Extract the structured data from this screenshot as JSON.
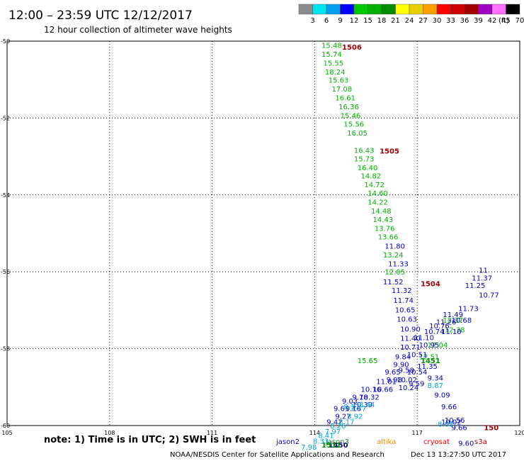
{
  "header": {
    "title": "12:00 – 23:59 UTC 12/12/2017",
    "subtitle": "12 hour collection of altimeter wave heights"
  },
  "colorbar": {
    "unit": "(ft)",
    "labels": [
      "3",
      "6",
      "9",
      "12",
      "15",
      "18",
      "21",
      "24",
      "27",
      "30",
      "33",
      "36",
      "39",
      "42",
      "45",
      "70"
    ],
    "colors": [
      "#8c8c8c",
      "#00e5ef",
      "#00a0f0",
      "#0000ff",
      "#00c800",
      "#00b000",
      "#008c00",
      "#ffff00",
      "#e8d000",
      "#ffa000",
      "#ff0000",
      "#d00000",
      "#a00000",
      "#a000c0",
      "#ff70ff",
      "#000000"
    ]
  },
  "footer": {
    "note": "note: 1) Time is in UTC; 2) SWH is in feet",
    "credit": "NOAA/NESDIS Center for Satellite Applications and Research",
    "timestamp": "Dec 13 13:27:50 UTC 2017",
    "satellites": [
      {
        "name": "jason2",
        "color": "#0000c8"
      },
      {
        "name": "jason3",
        "color": "#008c00"
      },
      {
        "name": "altika",
        "color": "#ff8c00"
      },
      {
        "name": "cryosat",
        "color": "#ff0000"
      },
      {
        "name": "s3a",
        "color": "#a00000"
      }
    ]
  },
  "chart_data": {
    "type": "scatter",
    "title": "12:00 – 23:59 UTC 12/12/2017",
    "subtitle": "12 hour collection of altimeter wave heights",
    "xlim": [
      105,
      120
    ],
    "ylim": [
      -60,
      -50
    ],
    "xticks": [
      105,
      108,
      111,
      114,
      117,
      120
    ],
    "yticks": [
      -50,
      -52,
      -54,
      -56,
      -58,
      -60
    ],
    "grid": true,
    "series": [
      {
        "name": "jason3",
        "color": "#00b000",
        "points": [
          {
            "x": 114.2,
            "y": -50.1,
            "v": "15.48"
          },
          {
            "x": 114.2,
            "y": -50.33,
            "v": "15.74"
          },
          {
            "x": 114.25,
            "y": -50.56,
            "v": "15.55"
          },
          {
            "x": 114.3,
            "y": -50.79,
            "v": "18.24"
          },
          {
            "x": 114.4,
            "y": -51.01,
            "v": "15.63"
          },
          {
            "x": 114.5,
            "y": -51.24,
            "v": "17.08"
          },
          {
            "x": 114.6,
            "y": -51.47,
            "v": "16.61"
          },
          {
            "x": 114.7,
            "y": -51.7,
            "v": "16.36"
          },
          {
            "x": 114.75,
            "y": -51.93,
            "v": "15.46"
          },
          {
            "x": 114.85,
            "y": -52.15,
            "v": "15.56"
          },
          {
            "x": 114.95,
            "y": -52.38,
            "v": "16.05"
          },
          {
            "x": 115.15,
            "y": -52.83,
            "v": "16.43"
          },
          {
            "x": 115.15,
            "y": -53.05,
            "v": "15.73"
          },
          {
            "x": 115.25,
            "y": -53.28,
            "v": "16.40"
          },
          {
            "x": 115.35,
            "y": -53.5,
            "v": "14.82"
          },
          {
            "x": 115.45,
            "y": -53.73,
            "v": "14.72"
          },
          {
            "x": 115.55,
            "y": -53.95,
            "v": "14.60"
          },
          {
            "x": 115.55,
            "y": -54.18,
            "v": "14.22"
          },
          {
            "x": 115.65,
            "y": -54.41,
            "v": "14.48"
          },
          {
            "x": 115.7,
            "y": -54.63,
            "v": "14.43"
          },
          {
            "x": 115.75,
            "y": -54.86,
            "v": "13.76"
          },
          {
            "x": 115.85,
            "y": -55.08,
            "v": "13.66"
          },
          {
            "x": 116.0,
            "y": -55.55,
            "v": "13.24"
          },
          {
            "x": 116.05,
            "y": -56.0,
            "v": "12.05"
          },
          {
            "x": 117.75,
            "y": -57.25,
            "v": "12.37"
          },
          {
            "x": 117.8,
            "y": -57.5,
            "v": "12.38"
          },
          {
            "x": 117.3,
            "y": -57.9,
            "v": "12.04"
          },
          {
            "x": 117.05,
            "y": -58.2,
            "v": "12.51"
          },
          {
            "x": 115.25,
            "y": -58.3,
            "v": "15.65"
          }
        ]
      },
      {
        "name": "jason2",
        "color": "#0000c8",
        "points": [
          {
            "x": 116.05,
            "y": -55.32,
            "v": "11.80"
          },
          {
            "x": 116.15,
            "y": -55.78,
            "v": "11.33"
          },
          {
            "x": 116.0,
            "y": -56.25,
            "v": "11.52"
          },
          {
            "x": 116.25,
            "y": -56.48,
            "v": "11.32"
          },
          {
            "x": 116.3,
            "y": -56.73,
            "v": "11.74"
          },
          {
            "x": 116.35,
            "y": -56.98,
            "v": "10.65"
          },
          {
            "x": 116.4,
            "y": -57.22,
            "v": "10.63"
          },
          {
            "x": 116.5,
            "y": -57.48,
            "v": "10.90"
          },
          {
            "x": 116.5,
            "y": -57.72,
            "v": "11.40"
          },
          {
            "x": 116.5,
            "y": -57.95,
            "v": "10.71"
          },
          {
            "x": 116.35,
            "y": -58.2,
            "v": "9.84"
          },
          {
            "x": 116.3,
            "y": -58.4,
            "v": "9.90"
          },
          {
            "x": 116.45,
            "y": -58.55,
            "v": "9.58"
          },
          {
            "x": 116.05,
            "y": -58.6,
            "v": "9.65"
          },
          {
            "x": 116.1,
            "y": -58.8,
            "v": "9.98"
          },
          {
            "x": 115.8,
            "y": -58.85,
            "v": "11.01"
          },
          {
            "x": 115.7,
            "y": -59.05,
            "v": "10.66"
          },
          {
            "x": 115.35,
            "y": -59.05,
            "v": "10.16"
          },
          {
            "x": 115.3,
            "y": -59.25,
            "v": "10.32"
          },
          {
            "x": 115.1,
            "y": -59.25,
            "v": "9.78"
          },
          {
            "x": 115.1,
            "y": -59.45,
            "v": "10.39"
          },
          {
            "x": 114.8,
            "y": -59.35,
            "v": "9.03"
          },
          {
            "x": 114.9,
            "y": -59.55,
            "v": "9.16"
          },
          {
            "x": 114.55,
            "y": -59.55,
            "v": "9.61"
          },
          {
            "x": 114.6,
            "y": -59.75,
            "v": "9.27"
          },
          {
            "x": 114.35,
            "y": -59.9,
            "v": "9.47"
          },
          {
            "x": 116.7,
            "y": -58.15,
            "v": "10.51"
          },
          {
            "x": 116.9,
            "y": -57.7,
            "v": "11.10"
          },
          {
            "x": 117.05,
            "y": -57.9,
            "v": "10.95"
          },
          {
            "x": 117.2,
            "y": -57.55,
            "v": "10.74"
          },
          {
            "x": 117.35,
            "y": -57.4,
            "v": "10.76"
          },
          {
            "x": 117.55,
            "y": -57.3,
            "v": "11.26"
          },
          {
            "x": 117.7,
            "y": -57.55,
            "v": "11.10"
          },
          {
            "x": 117.75,
            "y": -57.1,
            "v": "11.49"
          },
          {
            "x": 118.0,
            "y": -57.25,
            "v": "10.68"
          },
          {
            "x": 118.2,
            "y": -56.95,
            "v": "11.73"
          },
          {
            "x": 118.4,
            "y": -56.35,
            "v": "11.25"
          },
          {
            "x": 118.6,
            "y": -56.15,
            "v": "11.37"
          },
          {
            "x": 118.8,
            "y": -55.95,
            "v": "11"
          },
          {
            "x": 118.8,
            "y": -56.6,
            "v": "10.77"
          },
          {
            "x": 116.7,
            "y": -58.6,
            "v": "10.54"
          },
          {
            "x": 116.4,
            "y": -58.8,
            "v": "10.02"
          },
          {
            "x": 116.45,
            "y": -59.0,
            "v": "10.24"
          },
          {
            "x": 117.0,
            "y": -58.45,
            "v": "11.35"
          },
          {
            "x": 117.3,
            "y": -58.75,
            "v": "9.34"
          },
          {
            "x": 117.5,
            "y": -59.2,
            "v": "9.09"
          },
          {
            "x": 117.7,
            "y": -59.5,
            "v": "9.66"
          },
          {
            "x": 117.8,
            "y": -59.85,
            "v": "10.56"
          },
          {
            "x": 117.7,
            "y": -59.9,
            "v": "10.02"
          },
          {
            "x": 118.0,
            "y": -60.05,
            "v": "9.66"
          },
          {
            "x": 118.2,
            "y": -60.45,
            "v": "9.60"
          },
          {
            "x": 116.75,
            "y": -58.9,
            "v": "9.59"
          }
        ]
      },
      {
        "name": "altika",
        "color": "#00a8d0",
        "points": [
          {
            "x": 113.6,
            "y": -60.55,
            "v": "7.98"
          },
          {
            "x": 113.95,
            "y": -60.4,
            "v": "8.33"
          },
          {
            "x": 114.1,
            "y": -60.25,
            "v": "8.41"
          },
          {
            "x": 114.3,
            "y": -60.15,
            "v": "7.97"
          },
          {
            "x": 114.45,
            "y": -60.0,
            "v": "8.26"
          },
          {
            "x": 114.7,
            "y": -59.9,
            "v": "8.17"
          },
          {
            "x": 114.95,
            "y": -59.75,
            "v": "8.92"
          },
          {
            "x": 115.05,
            "y": -59.55,
            "v": "7.77"
          },
          {
            "x": 115.3,
            "y": -59.45,
            "v": "8.44"
          },
          {
            "x": 117.3,
            "y": -58.95,
            "v": "8.87"
          },
          {
            "x": 117.6,
            "y": -59.95,
            "v": "8.68"
          },
          {
            "x": 114.85,
            "y": -59.5,
            "v": "8.17"
          }
        ]
      }
    ],
    "pass_labels": [
      {
        "text": "1506",
        "x": 114.8,
        "y": -50.15,
        "color": "#a00000"
      },
      {
        "text": "1505",
        "x": 115.9,
        "y": -52.85,
        "color": "#a00000"
      },
      {
        "text": "1504",
        "x": 117.1,
        "y": -56.3,
        "color": "#a00000"
      },
      {
        "text": "150",
        "x": 118.95,
        "y": -60.05,
        "color": "#a00000"
      },
      {
        "text": "1450",
        "x": 114.4,
        "y": -60.5,
        "color": "#000080"
      },
      {
        "text": "1511",
        "x": 114.2,
        "y": -60.5,
        "color": "#008c00"
      },
      {
        "text": "1451",
        "x": 117.1,
        "y": -58.3,
        "color": "#008c00"
      }
    ]
  }
}
